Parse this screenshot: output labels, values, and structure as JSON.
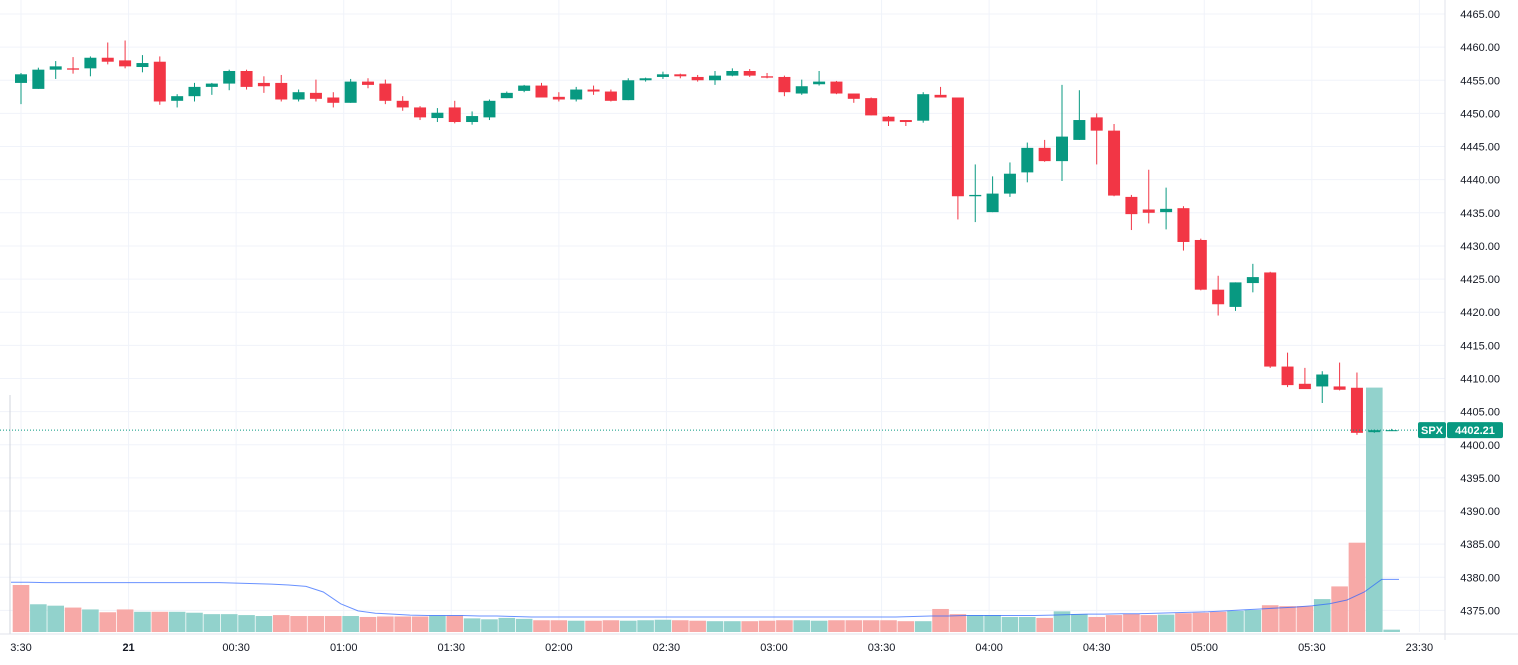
{
  "colors": {
    "up": "#089981",
    "down": "#f23645",
    "volume_up": "#92d2cc",
    "volume_down": "#f7a9a7",
    "volume_ma": "#2962ff",
    "grid": "#f0f3fa",
    "badge": "#089981",
    "last_price_line": "#089981"
  },
  "price_badge": {
    "symbol": "SPX",
    "value": "4402.21"
  },
  "chart_data": {
    "type": "candlestick",
    "grid": true,
    "y_axis": {
      "position": "right",
      "range": [
        4371.0,
        4466.5
      ],
      "ticks": [
        "4465.00",
        "4460.00",
        "4455.00",
        "4450.00",
        "4445.00",
        "4440.00",
        "4435.00",
        "4430.00",
        "4425.00",
        "4420.00",
        "4415.00",
        "4410.00",
        "4405.00",
        "4400.00",
        "4395.00",
        "4390.00",
        "4385.00",
        "4380.00",
        "4375.00"
      ]
    },
    "x_axis": {
      "labels": [
        {
          "text": "3:30",
          "t": 0
        },
        {
          "text": "21",
          "t": 6.2,
          "bold": true
        },
        {
          "text": "00:30",
          "t": 12.4
        },
        {
          "text": "01:00",
          "t": 18.6
        },
        {
          "text": "01:30",
          "t": 24.8
        },
        {
          "text": "02:00",
          "t": 31.0
        },
        {
          "text": "02:30",
          "t": 37.2
        },
        {
          "text": "03:00",
          "t": 43.4
        },
        {
          "text": "03:30",
          "t": 49.6
        },
        {
          "text": "04:00",
          "t": 55.8
        },
        {
          "text": "04:30",
          "t": 62.0
        },
        {
          "text": "05:00",
          "t": 68.2
        },
        {
          "text": "05:30",
          "t": 74.4
        },
        {
          "text": "23:30",
          "t": 80.6
        }
      ]
    },
    "last_price": 4402.21,
    "candles": [
      [
        4454.6,
        4456.1,
        4451.4,
        4455.9
      ],
      [
        4453.7,
        4456.9,
        4453.7,
        4456.6
      ],
      [
        4456.6,
        4457.9,
        4455.2,
        4457.1
      ],
      [
        4456.8,
        4458.5,
        4456.0,
        4456.6
      ],
      [
        4456.8,
        4458.6,
        4455.6,
        4458.4
      ],
      [
        4458.4,
        4460.7,
        4457.4,
        4457.8
      ],
      [
        4458.0,
        4461.0,
        4456.8,
        4457.1
      ],
      [
        4457.0,
        4458.8,
        4456.2,
        4457.6
      ],
      [
        4457.8,
        4458.6,
        4451.3,
        4451.8
      ],
      [
        4451.9,
        4452.9,
        4450.9,
        4452.6
      ],
      [
        4452.6,
        4454.6,
        4451.8,
        4454.0
      ],
      [
        4454.0,
        4454.6,
        4452.8,
        4454.5
      ],
      [
        4454.5,
        4456.6,
        4453.5,
        4456.4
      ],
      [
        4456.4,
        4456.6,
        4453.6,
        4454.0
      ],
      [
        4454.6,
        4455.6,
        4453.1,
        4454.1
      ],
      [
        4454.6,
        4455.8,
        4451.8,
        4452.1
      ],
      [
        4452.1,
        4453.6,
        4451.8,
        4453.2
      ],
      [
        4453.1,
        4455.1,
        4451.8,
        4452.2
      ],
      [
        4452.4,
        4453.2,
        4450.9,
        4451.6
      ],
      [
        4451.6,
        4455.2,
        4451.6,
        4454.8
      ],
      [
        4454.8,
        4455.3,
        4453.8,
        4454.3
      ],
      [
        4454.5,
        4455.1,
        4451.4,
        4451.9
      ],
      [
        4451.9,
        4452.6,
        4450.4,
        4450.9
      ],
      [
        4450.9,
        4451.1,
        4449.0,
        4449.4
      ],
      [
        4449.3,
        4450.8,
        4448.7,
        4450.1
      ],
      [
        4450.9,
        4451.9,
        4448.5,
        4448.7
      ],
      [
        4448.7,
        4450.3,
        4448.3,
        4449.6
      ],
      [
        4449.4,
        4452.1,
        4449.0,
        4451.9
      ],
      [
        4452.3,
        4453.3,
        4452.3,
        4453.1
      ],
      [
        4453.4,
        4454.3,
        4453.2,
        4454.2
      ],
      [
        4454.2,
        4454.6,
        4452.4,
        4452.4
      ],
      [
        4452.5,
        4453.2,
        4451.8,
        4452.1
      ],
      [
        4452.1,
        4454.0,
        4451.8,
        4453.6
      ],
      [
        4453.6,
        4454.2,
        4452.8,
        4453.3
      ],
      [
        4453.3,
        4453.6,
        4451.8,
        4451.9
      ],
      [
        4452.0,
        4455.3,
        4452.0,
        4455.0
      ],
      [
        4455.0,
        4455.4,
        4454.8,
        4455.3
      ],
      [
        4455.5,
        4456.3,
        4455.2,
        4455.9
      ],
      [
        4455.9,
        4456.0,
        4455.3,
        4455.6
      ],
      [
        4455.5,
        4455.8,
        4454.8,
        4455.0
      ],
      [
        4455.0,
        4456.4,
        4454.3,
        4455.7
      ],
      [
        4455.7,
        4456.8,
        4455.6,
        4456.4
      ],
      [
        4456.4,
        4456.7,
        4455.5,
        4455.7
      ],
      [
        4455.6,
        4456.1,
        4455.3,
        4455.4
      ],
      [
        4455.5,
        4455.7,
        4452.6,
        4453.2
      ],
      [
        4453.0,
        4455.1,
        4452.8,
        4454.1
      ],
      [
        4454.4,
        4456.4,
        4454.2,
        4454.8
      ],
      [
        4454.8,
        4454.9,
        4452.9,
        4453.0
      ],
      [
        4453.0,
        4453.0,
        4451.6,
        4452.2
      ],
      [
        4452.3,
        4452.4,
        4449.7,
        4449.7
      ],
      [
        4449.5,
        4449.6,
        4448.1,
        4448.8
      ],
      [
        4449.0,
        4449.0,
        4448.1,
        4448.7
      ],
      [
        4448.9,
        4453.2,
        4448.6,
        4452.9
      ],
      [
        4452.8,
        4454.0,
        4452.8,
        4452.4
      ],
      [
        4452.4,
        4452.4,
        4434.0,
        4437.5
      ],
      [
        4437.5,
        4442.3,
        4433.6,
        4437.7
      ],
      [
        4435.1,
        4440.5,
        4435.1,
        4437.9
      ],
      [
        4437.9,
        4442.6,
        4437.4,
        4440.9
      ],
      [
        4441.1,
        4445.6,
        4439.6,
        4444.8
      ],
      [
        4444.8,
        4446.0,
        4442.7,
        4442.8
      ],
      [
        4442.8,
        4454.3,
        4439.8,
        4446.5
      ],
      [
        4446.0,
        4453.5,
        4446.0,
        4449.0
      ],
      [
        4449.4,
        4450.0,
        4442.3,
        4447.4
      ],
      [
        4447.4,
        4448.4,
        4437.5,
        4437.6
      ],
      [
        4437.4,
        4437.7,
        4432.4,
        4434.8
      ],
      [
        4435.5,
        4441.5,
        4433.4,
        4435.0
      ],
      [
        4435.1,
        4438.8,
        4432.5,
        4435.6
      ],
      [
        4435.7,
        4436.0,
        4429.3,
        4430.6
      ],
      [
        4430.9,
        4431.1,
        4423.3,
        4423.4
      ],
      [
        4423.4,
        4425.5,
        4419.5,
        4421.2
      ],
      [
        4420.8,
        4424.5,
        4420.2,
        4424.5
      ],
      [
        4424.4,
        4427.3,
        4423.0,
        4425.3
      ],
      [
        4426.0,
        4426.1,
        4411.6,
        4411.8
      ],
      [
        4411.8,
        4413.9,
        4408.7,
        4409.0
      ],
      [
        4409.2,
        4411.6,
        4408.6,
        4408.4
      ],
      [
        4408.8,
        4411.1,
        4406.3,
        4410.6
      ],
      [
        4408.8,
        4412.4,
        4408.2,
        4408.3
      ],
      [
        4408.6,
        4410.9,
        4401.5,
        4401.8
      ],
      [
        4401.9,
        4402.3,
        4401.8,
        4402.2
      ],
      [
        4402.2,
        4402.4,
        4402.1,
        4402.2
      ]
    ],
    "volume": [
      [
        1.0,
        "down"
      ],
      [
        0.59,
        "up"
      ],
      [
        0.56,
        "up"
      ],
      [
        0.52,
        "down"
      ],
      [
        0.48,
        "up"
      ],
      [
        0.42,
        "down"
      ],
      [
        0.48,
        "down"
      ],
      [
        0.43,
        "up"
      ],
      [
        0.43,
        "down"
      ],
      [
        0.43,
        "up"
      ],
      [
        0.41,
        "up"
      ],
      [
        0.38,
        "up"
      ],
      [
        0.38,
        "up"
      ],
      [
        0.36,
        "up"
      ],
      [
        0.34,
        "up"
      ],
      [
        0.36,
        "down"
      ],
      [
        0.34,
        "down"
      ],
      [
        0.34,
        "down"
      ],
      [
        0.34,
        "down"
      ],
      [
        0.34,
        "up"
      ],
      [
        0.32,
        "down"
      ],
      [
        0.33,
        "down"
      ],
      [
        0.33,
        "down"
      ],
      [
        0.33,
        "down"
      ],
      [
        0.35,
        "up"
      ],
      [
        0.35,
        "down"
      ],
      [
        0.29,
        "up"
      ],
      [
        0.27,
        "up"
      ],
      [
        0.3,
        "up"
      ],
      [
        0.28,
        "up"
      ],
      [
        0.25,
        "down"
      ],
      [
        0.25,
        "down"
      ],
      [
        0.24,
        "up"
      ],
      [
        0.24,
        "down"
      ],
      [
        0.25,
        "down"
      ],
      [
        0.24,
        "up"
      ],
      [
        0.25,
        "up"
      ],
      [
        0.26,
        "up"
      ],
      [
        0.25,
        "down"
      ],
      [
        0.24,
        "down"
      ],
      [
        0.23,
        "up"
      ],
      [
        0.23,
        "up"
      ],
      [
        0.23,
        "down"
      ],
      [
        0.24,
        "down"
      ],
      [
        0.25,
        "down"
      ],
      [
        0.25,
        "up"
      ],
      [
        0.24,
        "up"
      ],
      [
        0.25,
        "down"
      ],
      [
        0.25,
        "down"
      ],
      [
        0.25,
        "down"
      ],
      [
        0.25,
        "down"
      ],
      [
        0.23,
        "down"
      ],
      [
        0.23,
        "up"
      ],
      [
        0.49,
        "down"
      ],
      [
        0.38,
        "down"
      ],
      [
        0.36,
        "up"
      ],
      [
        0.36,
        "up"
      ],
      [
        0.32,
        "up"
      ],
      [
        0.32,
        "up"
      ],
      [
        0.3,
        "down"
      ],
      [
        0.44,
        "up"
      ],
      [
        0.38,
        "up"
      ],
      [
        0.32,
        "down"
      ],
      [
        0.36,
        "down"
      ],
      [
        0.38,
        "down"
      ],
      [
        0.36,
        "down"
      ],
      [
        0.37,
        "up"
      ],
      [
        0.4,
        "down"
      ],
      [
        0.41,
        "down"
      ],
      [
        0.43,
        "down"
      ],
      [
        0.45,
        "up"
      ],
      [
        0.47,
        "up"
      ],
      [
        0.57,
        "down"
      ],
      [
        0.55,
        "down"
      ],
      [
        0.55,
        "down"
      ],
      [
        0.7,
        "up"
      ],
      [
        0.97,
        "down"
      ],
      [
        1.9,
        "down"
      ],
      [
        5.2,
        "up"
      ],
      [
        0.05,
        "up"
      ]
    ],
    "volume_ma": [
      1.06,
      1.06,
      1.05,
      1.05,
      1.05,
      1.05,
      1.05,
      1.05,
      1.05,
      1.05,
      1.05,
      1.05,
      1.05,
      1.04,
      1.03,
      1.02,
      1.0,
      0.97,
      0.85,
      0.6,
      0.45,
      0.4,
      0.38,
      0.36,
      0.35,
      0.35,
      0.35,
      0.34,
      0.34,
      0.33,
      0.32,
      0.32,
      0.32,
      0.32,
      0.32,
      0.32,
      0.32,
      0.32,
      0.32,
      0.32,
      0.32,
      0.32,
      0.32,
      0.32,
      0.32,
      0.32,
      0.32,
      0.32,
      0.32,
      0.32,
      0.32,
      0.32,
      0.33,
      0.34,
      0.34,
      0.35,
      0.35,
      0.35,
      0.35,
      0.35,
      0.36,
      0.37,
      0.38,
      0.38,
      0.39,
      0.39,
      0.4,
      0.41,
      0.42,
      0.43,
      0.45,
      0.47,
      0.49,
      0.51,
      0.53,
      0.56,
      0.6,
      0.68,
      0.85,
      1.12,
      1.12
    ]
  }
}
